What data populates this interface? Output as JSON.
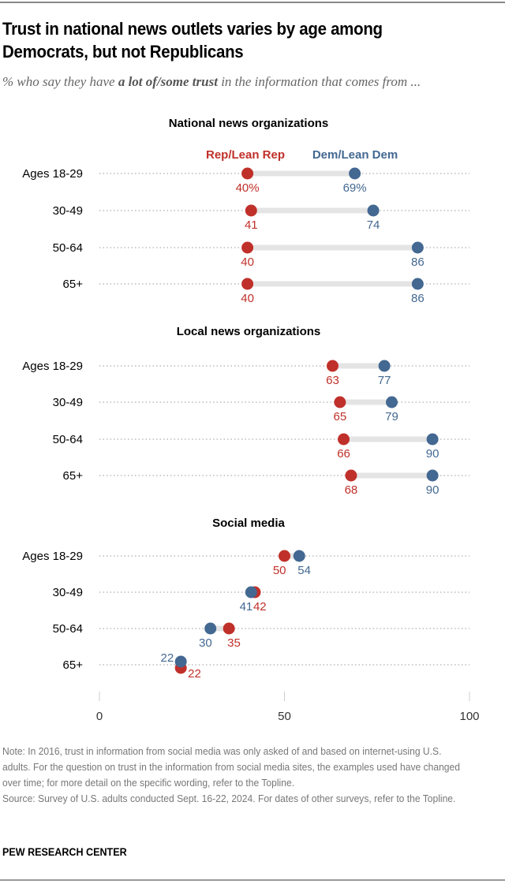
{
  "title": "Trust in national news outlets varies by age among Democrats, but not Republicans",
  "subtitle": {
    "prefix": "% who say they have ",
    "bold": "a lot of/some trust",
    "suffix": " in the information that comes from ..."
  },
  "note": "Note: In 2016, trust in information from social media was only asked of and based on internet-using U.S. adults. For the question on trust in the information from social media sites, the examples used have changed over time; for more detail on the specific wording, refer to the Topline.",
  "source": "Source: Survey of U.S. adults conducted Sept. 16-22, 2024. For dates of other surveys, refer to the Topline.",
  "brand": "PEW RESEARCH CENTER",
  "colors": {
    "rep": "#C0302A",
    "dem": "#436891",
    "connector": "#E4E4E4",
    "grid": "#999999"
  },
  "chart_data": {
    "type": "dot-plot",
    "xlim": [
      0,
      100
    ],
    "xticks": [
      0,
      50,
      100
    ],
    "legend": {
      "rep": "Rep/Lean Rep",
      "dem": "Dem/Lean Dem",
      "placement": "top"
    },
    "categories": [
      "Ages 18-29",
      "30-49",
      "50-64",
      "65+"
    ],
    "panels": [
      {
        "title": "National news organizations",
        "rep": [
          40,
          41,
          40,
          40
        ],
        "dem": [
          69,
          74,
          86,
          86
        ],
        "labels_rep": [
          "40%",
          "41",
          "40",
          "40"
        ],
        "labels_dem": [
          "69%",
          "74",
          "86",
          "86"
        ]
      },
      {
        "title": "Local news organizations",
        "rep": [
          63,
          65,
          66,
          68
        ],
        "dem": [
          77,
          79,
          90,
          90
        ],
        "labels_rep": [
          "63",
          "65",
          "66",
          "68"
        ],
        "labels_dem": [
          "77",
          "79",
          "90",
          "90"
        ]
      },
      {
        "title": "Social media",
        "rep": [
          50,
          42,
          35,
          22
        ],
        "dem": [
          54,
          41,
          30,
          22
        ],
        "labels_rep": [
          "50",
          "42",
          "35",
          "22"
        ],
        "labels_dem": [
          "54",
          "41",
          "30",
          "22"
        ]
      }
    ]
  }
}
